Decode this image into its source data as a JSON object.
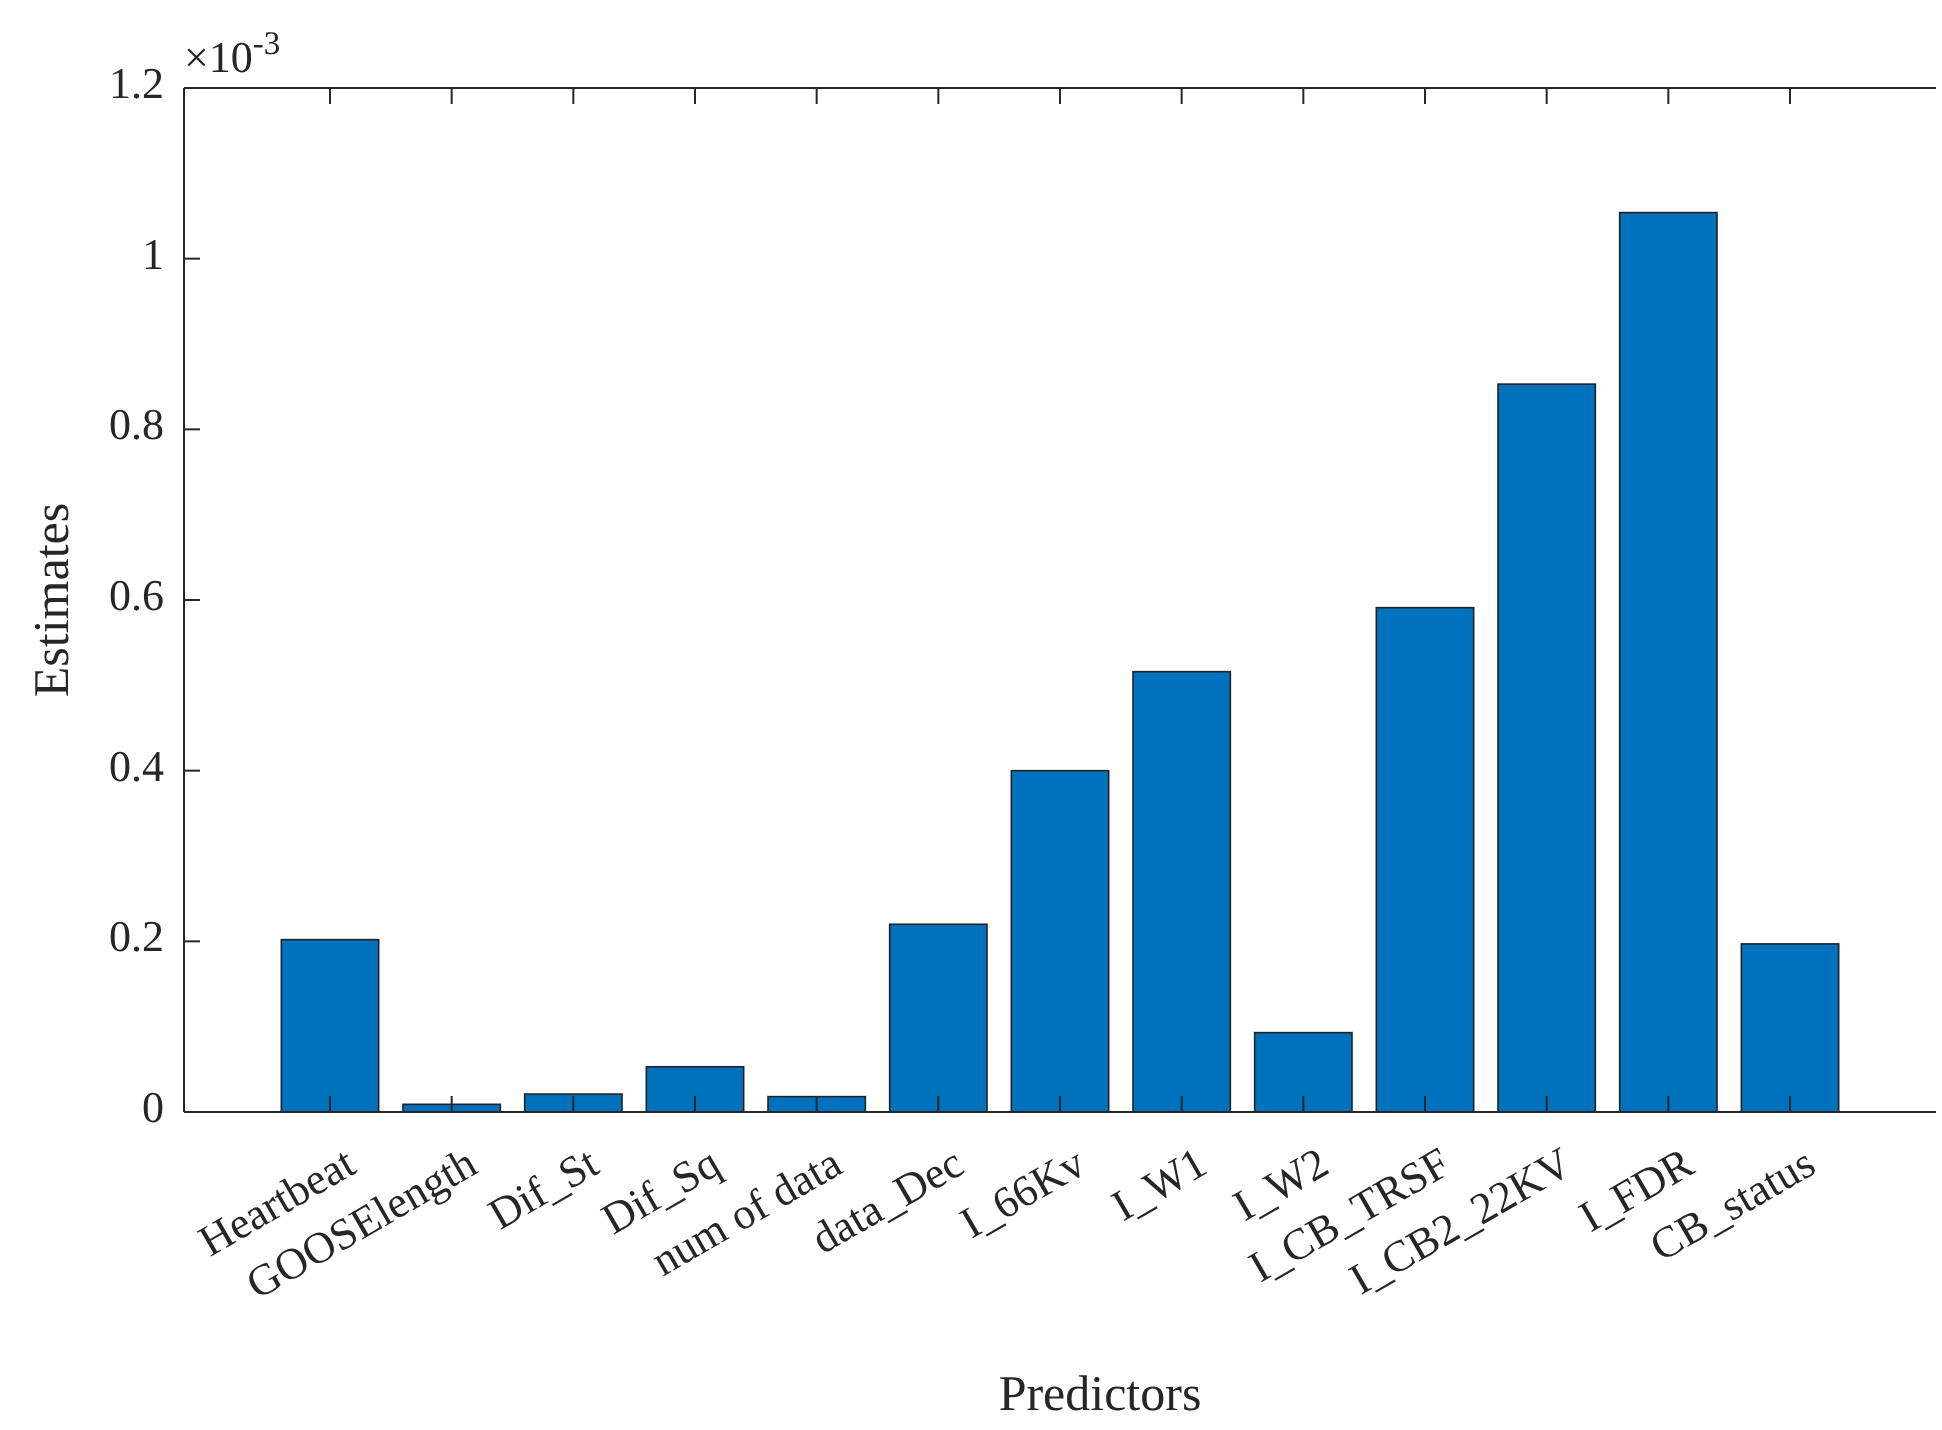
{
  "chart_data": {
    "type": "bar",
    "xlabel": "Predictors",
    "ylabel": "Estimates",
    "annotations": [
      "×10$^{-3}$"
    ],
    "categories": [
      "Heartbeat",
      "GOOSElength",
      "Dif_St",
      "Dif_Sq",
      "num of data",
      "data_Dec",
      "I_66Kv",
      "I_W1",
      "I_W2",
      "I_CB_TRSF",
      "I_CB2_22KV",
      "I_FDR",
      "CB_status"
    ],
    "values": [
      0.202,
      0.009,
      0.021,
      0.053,
      0.018,
      0.22,
      0.4,
      0.516,
      0.093,
      0.591,
      0.853,
      1.054,
      0.197
    ],
    "color": "#0072bd",
    "ylim": [
      0,
      1.2
    ],
    "yticks": [
      0,
      0.2,
      0.4,
      0.6,
      0.8,
      1,
      1.2
    ],
    "grid": false
  }
}
